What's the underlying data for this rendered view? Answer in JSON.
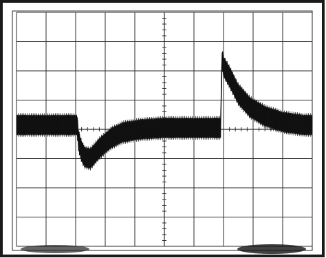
{
  "image": {
    "kind": "oscilloscope-screen-photo",
    "colors": {
      "background": "#ffffff",
      "screen": "#ffffff",
      "bezel": "#1a1a1a",
      "grid": "#2a2a2a",
      "trace": "#111111"
    },
    "grid": {
      "columns": 10,
      "rows": 8
    },
    "chart_data": {
      "type": "line",
      "title": "",
      "xlabel": "",
      "ylabel": "",
      "x_divisions": [
        0,
        10
      ],
      "y_divisions": [
        0,
        8
      ],
      "grid": true,
      "series": [
        {
          "values_description_only": false,
          "x": [
            0.0,
            2.05,
            2.1,
            2.2,
            2.3,
            2.5,
            2.8,
            3.2,
            3.6,
            4.2,
            5.0,
            6.0,
            6.9,
            6.95,
            7.0,
            7.2,
            7.5,
            7.9,
            8.4,
            9.0,
            9.7,
            10.0
          ],
          "y": [
            4.15,
            4.15,
            3.6,
            3.25,
            3.05,
            3.0,
            3.35,
            3.7,
            3.9,
            4.0,
            4.05,
            4.05,
            4.05,
            6.4,
            6.15,
            5.8,
            5.2,
            4.75,
            4.45,
            4.25,
            4.15,
            4.15
          ],
          "ripple_amplitude_divisions": 0.35
        }
      ]
    }
  }
}
